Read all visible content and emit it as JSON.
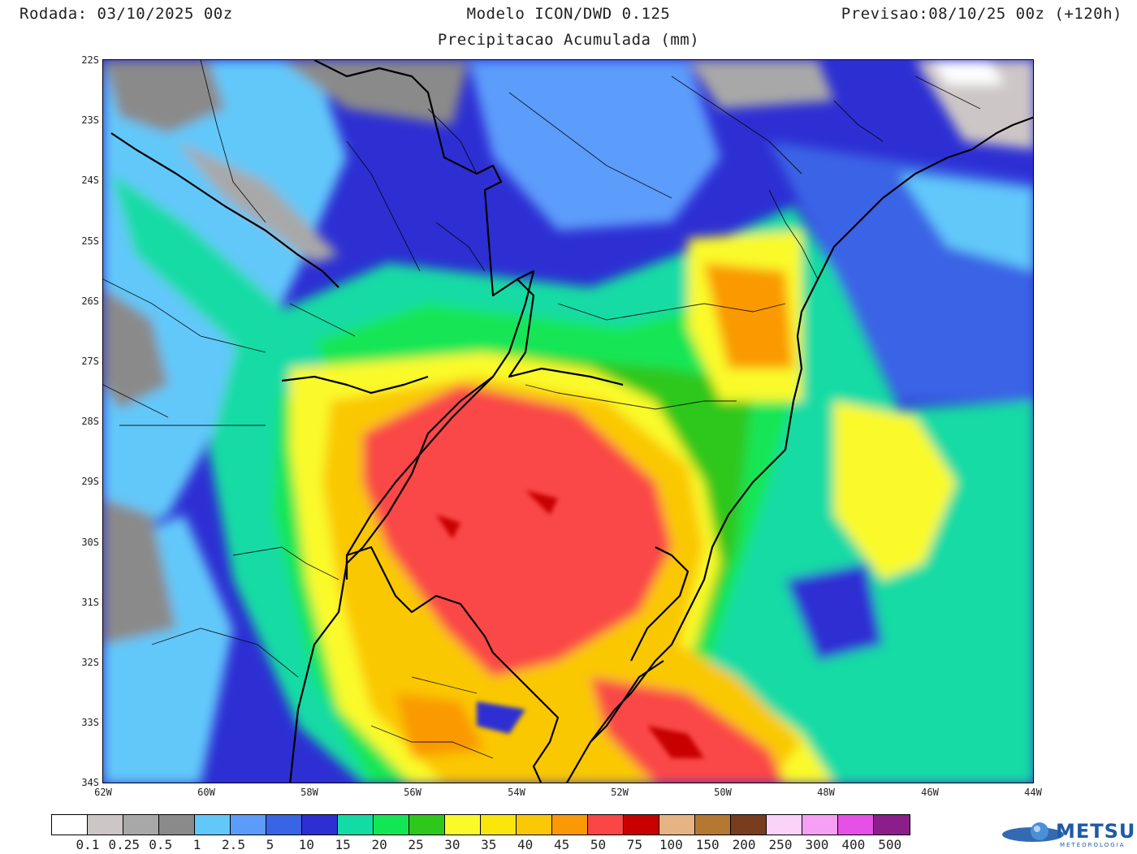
{
  "header": {
    "run": "Rodada: 03/10/2025 00z",
    "model": "Modelo ICON/DWD 0.125",
    "forecast": "Previsao:08/10/25 00z (+120h)",
    "subtitle": "Precipitacao Acumulada (mm)"
  },
  "map": {
    "lat_labels": [
      "22S",
      "23S",
      "24S",
      "25S",
      "26S",
      "27S",
      "28S",
      "29S",
      "30S",
      "31S",
      "32S",
      "33S",
      "34S"
    ],
    "lon_labels": [
      "62W",
      "60W",
      "58W",
      "56W",
      "54W",
      "52W",
      "50W",
      "48W",
      "46W",
      "44W"
    ]
  },
  "legend": {
    "colors": [
      "#ffffff",
      "#cdc6c6",
      "#a8a8a8",
      "#8a8a8a",
      "#62c8fa",
      "#5b9cfb",
      "#3a64e6",
      "#2d2fd3",
      "#12dba4",
      "#12e655",
      "#2ec71c",
      "#fafa2a",
      "#fae60a",
      "#fac805",
      "#fa9905",
      "#fa4646",
      "#c80000",
      "#e6b482",
      "#b47832",
      "#783c1e",
      "#fad2fa",
      "#f5a0f5",
      "#e650e6",
      "#8c1e8c"
    ],
    "labels": [
      "0.1",
      "0.25",
      "0.5",
      "1",
      "2.5",
      "5",
      "10",
      "15",
      "20",
      "25",
      "30",
      "35",
      "40",
      "45",
      "50",
      "75",
      "100",
      "150",
      "200",
      "250",
      "300",
      "400",
      "500"
    ]
  },
  "logo": {
    "name": "METSUL",
    "sub": "METEOROLOGIA"
  }
}
